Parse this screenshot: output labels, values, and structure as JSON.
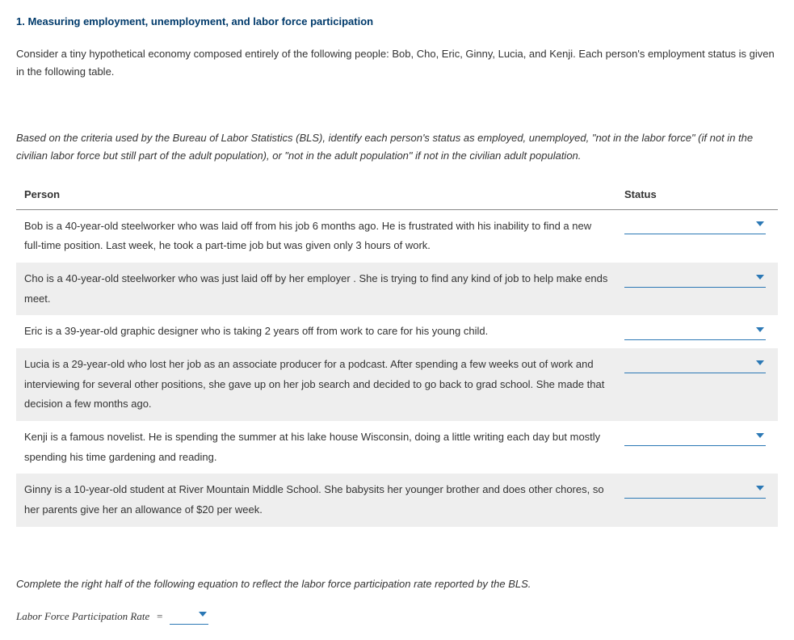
{
  "title": "1. Measuring employment, unemployment, and labor force participation",
  "intro": "Consider a tiny hypothetical economy composed entirely of the following people: Bob, Cho, Eric, Ginny, Lucia, and Kenji. Each person's employment status is given in the following table.",
  "instructions": "Based on the criteria used by the Bureau of Labor Statistics (BLS), identify each person's status as employed, unemployed, \"not in the labor force\" (if not in the civilian labor force but still part of the adult population), or \"not in the adult population\" if not in the civilian adult population.",
  "table": {
    "headers": {
      "person": "Person",
      "status": "Status"
    },
    "rows": [
      {
        "desc": "Bob is a 40-year-old steelworker who was laid off from his job 6 months ago. He is frustrated with his inability to find a new full-time position. Last week, he took a part-time job but was given only 3 hours of work.",
        "alt": false
      },
      {
        "desc": "Cho is a 40-year-old steelworker who was just laid off by her employer . She is trying to find any kind of job to help make ends meet.",
        "alt": true
      },
      {
        "desc": "Eric is a 39-year-old graphic designer who is taking 2 years off from work to care for his young child.",
        "alt": false
      },
      {
        "desc": "Lucia is a 29-year-old who lost her job as an associate producer for a podcast. After spending a few weeks out of work and interviewing for several other positions, she gave up on her job search and decided to go back to grad school. She made that decision a few months ago.",
        "alt": true
      },
      {
        "desc": "Kenji is a famous novelist. He is spending the summer at his lake house Wisconsin, doing a little writing each day but mostly spending his time gardening and reading.",
        "alt": false
      },
      {
        "desc": "Ginny is a 10-year-old student at River Mountain Middle School. She babysits her younger brother and does other chores, so her parents give her an allowance of $20 per week.",
        "alt": true
      }
    ]
  },
  "equation": {
    "instructions": "Complete the right half of the following equation to reflect the labor force participation rate reported by the BLS.",
    "label": "Labor Force Participation Rate",
    "equals": "="
  },
  "colors": {
    "title": "#003a6b",
    "dropdown_border": "#2b78b5",
    "caret": "#2b78b5",
    "alt_row_bg": "#eeeeee",
    "header_border": "#888888"
  }
}
